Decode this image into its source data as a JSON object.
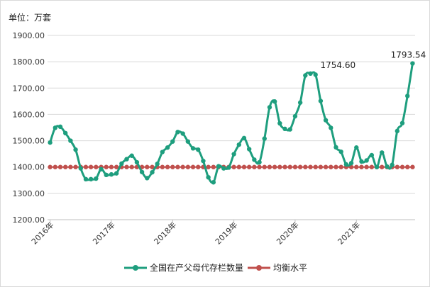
{
  "chart_data": {
    "type": "line",
    "unit_label": "单位：万套",
    "title": "",
    "xlabel": "",
    "ylabel": "",
    "ylim": [
      1200,
      1900
    ],
    "yticks": [
      "1200.00",
      "1300.00",
      "1400.00",
      "1500.00",
      "1600.00",
      "1700.00",
      "1800.00",
      "1900.00"
    ],
    "ytick_values": [
      1200,
      1300,
      1400,
      1500,
      1600,
      1700,
      1800,
      1900
    ],
    "xticks": [
      {
        "label": "2016年",
        "index": 0
      },
      {
        "label": "2017年",
        "index": 12
      },
      {
        "label": "2018年",
        "index": 24
      },
      {
        "label": "2019年",
        "index": 36
      },
      {
        "label": "2020年",
        "index": 48
      },
      {
        "label": "2021年",
        "index": 60
      }
    ],
    "grid": true,
    "legend_position": "bottom",
    "series": [
      {
        "name": "全国在产父母代存栏数量",
        "color": "#1e9e7e",
        "values": [
          1493,
          1549,
          1553,
          1529,
          1500,
          1466,
          1395,
          1354,
          1354,
          1356,
          1392,
          1370,
          1372,
          1376,
          1413,
          1430,
          1443,
          1418,
          1381,
          1358,
          1380,
          1412,
          1457,
          1474,
          1497,
          1533,
          1527,
          1497,
          1471,
          1466,
          1423,
          1361,
          1342,
          1403,
          1395,
          1398,
          1449,
          1485,
          1510,
          1468,
          1428,
          1418,
          1508,
          1627,
          1649,
          1566,
          1545,
          1543,
          1593,
          1645,
          1748,
          1755,
          1751,
          1651,
          1578,
          1549,
          1475,
          1458,
          1410,
          1415,
          1474,
          1421,
          1425,
          1445,
          1400,
          1455,
          1402,
          1408,
          1537,
          1567,
          1670,
          1793.54
        ]
      },
      {
        "name": "均衡水平",
        "color": "#c0504d",
        "values": [
          1400,
          1400,
          1400,
          1400,
          1400,
          1400,
          1400,
          1400,
          1400,
          1400,
          1400,
          1400,
          1400,
          1400,
          1400,
          1400,
          1400,
          1400,
          1400,
          1400,
          1400,
          1400,
          1400,
          1400,
          1400,
          1400,
          1400,
          1400,
          1400,
          1400,
          1400,
          1400,
          1400,
          1400,
          1400,
          1400,
          1400,
          1400,
          1400,
          1400,
          1400,
          1400,
          1400,
          1400,
          1400,
          1400,
          1400,
          1400,
          1400,
          1400,
          1400,
          1400,
          1400,
          1400,
          1400,
          1400,
          1400,
          1400,
          1400,
          1400,
          1400,
          1400,
          1400,
          1400,
          1400,
          1400,
          1400,
          1400,
          1400,
          1400,
          1400,
          1400
        ]
      }
    ],
    "annotations": [
      {
        "text": "1754.60",
        "index": 51,
        "value": 1754.6
      },
      {
        "text": "1793.54",
        "index": 71,
        "value": 1793.54
      }
    ]
  }
}
